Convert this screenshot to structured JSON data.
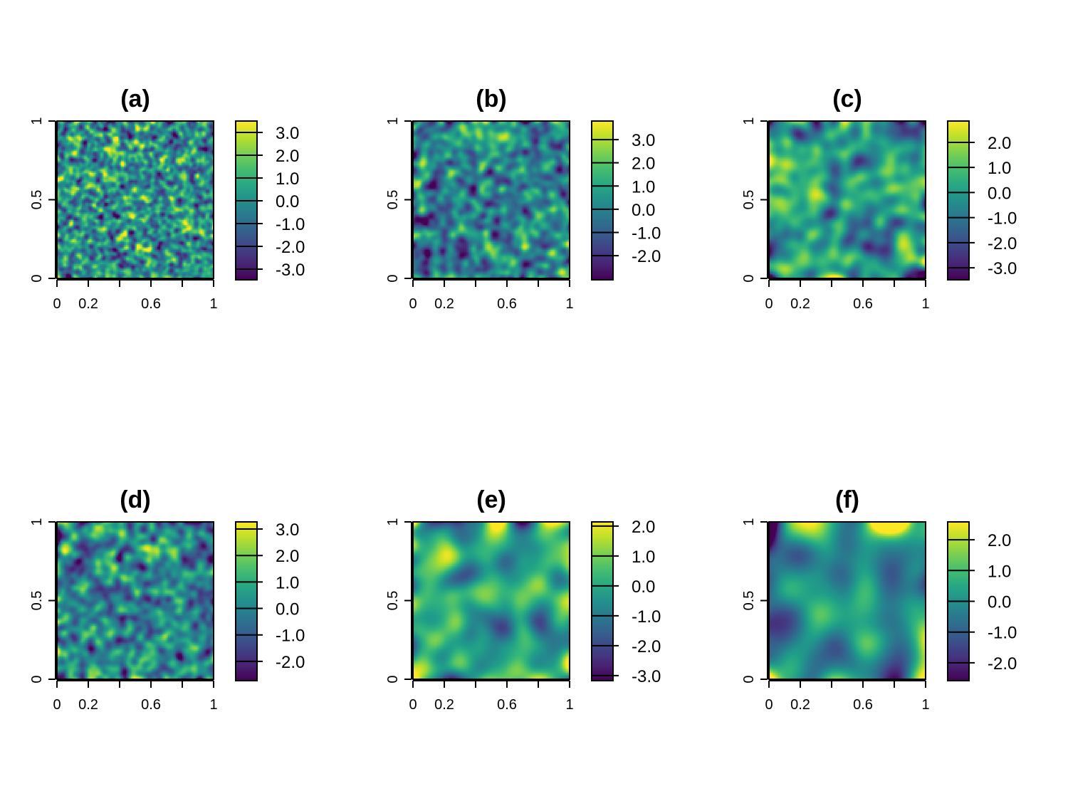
{
  "chart_data": [
    {
      "type": "heatmap",
      "title": "(a)",
      "x_ticks": [
        "0",
        "0.2",
        "0.6",
        "1"
      ],
      "x_tick_values": [
        0,
        0.2,
        0.6,
        1
      ],
      "y_ticks": [
        "0",
        "0.5",
        "1"
      ],
      "y_tick_values": [
        0,
        0.5,
        1
      ],
      "xlim": [
        0,
        1
      ],
      "ylim": [
        0,
        1
      ],
      "colorbar": {
        "range": [
          -3.47,
          3.5
        ],
        "ticks": [
          "3.0",
          "2.0",
          "1.0",
          "0.0",
          "-1.0",
          "-2.0",
          "-3.0"
        ],
        "tick_values": [
          3,
          2,
          1,
          0,
          -1,
          -2,
          -3
        ]
      },
      "colormap": "viridis"
    },
    {
      "type": "heatmap",
      "title": "(b)",
      "x_ticks": [
        "0",
        "0.2",
        "0.6",
        "1"
      ],
      "x_tick_values": [
        0,
        0.2,
        0.6,
        1
      ],
      "y_ticks": [
        "0",
        "0.5",
        "1"
      ],
      "y_tick_values": [
        0,
        0.5,
        1
      ],
      "xlim": [
        0,
        1
      ],
      "ylim": [
        0,
        1
      ],
      "colorbar": {
        "range": [
          -3.04,
          3.8
        ],
        "ticks": [
          "3.0",
          "2.0",
          "1.0",
          "0.0",
          "-1.0",
          "-2.0"
        ],
        "tick_values": [
          3,
          2,
          1,
          0,
          -1,
          -2
        ]
      },
      "colormap": "viridis"
    },
    {
      "type": "heatmap",
      "title": "(c)",
      "x_ticks": [
        "0",
        "0.2",
        "0.6",
        "1"
      ],
      "x_tick_values": [
        0,
        0.2,
        0.6,
        1
      ],
      "y_ticks": [
        "0",
        "0.5",
        "1"
      ],
      "y_tick_values": [
        0,
        0.5,
        1
      ],
      "xlim": [
        0,
        1
      ],
      "ylim": [
        0,
        1
      ],
      "colorbar": {
        "range": [
          -3.48,
          2.85
        ],
        "ticks": [
          "2.0",
          "1.0",
          "0.0",
          "-1.0",
          "-2.0",
          "-3.0"
        ],
        "tick_values": [
          2,
          1,
          0,
          -1,
          -2,
          -3
        ]
      },
      "colormap": "viridis"
    },
    {
      "type": "heatmap",
      "title": "(d)",
      "x_ticks": [
        "0",
        "0.2",
        "0.6",
        "1"
      ],
      "x_tick_values": [
        0,
        0.2,
        0.6,
        1
      ],
      "y_ticks": [
        "0",
        "0.5",
        "1"
      ],
      "y_tick_values": [
        0,
        0.5,
        1
      ],
      "xlim": [
        0,
        1
      ],
      "ylim": [
        0,
        1
      ],
      "colorbar": {
        "range": [
          -2.73,
          3.27
        ],
        "ticks": [
          "3.0",
          "2.0",
          "1.0",
          "0.0",
          "-1.0",
          "-2.0"
        ],
        "tick_values": [
          3,
          2,
          1,
          0,
          -1,
          -2
        ]
      },
      "colormap": "viridis"
    },
    {
      "type": "heatmap",
      "title": "(e)",
      "x_ticks": [
        "0",
        "0.2",
        "0.6",
        "1"
      ],
      "x_tick_values": [
        0,
        0.2,
        0.6,
        1
      ],
      "y_ticks": [
        "0",
        "0.5",
        "1"
      ],
      "y_tick_values": [
        0,
        0.5,
        1
      ],
      "xlim": [
        0,
        1
      ],
      "ylim": [
        0,
        1
      ],
      "colorbar": {
        "range": [
          -3.17,
          2.14
        ],
        "ticks": [
          "2.0",
          "1.0",
          "0.0",
          "-1.0",
          "-2.0",
          "-3.0"
        ],
        "tick_values": [
          2,
          1,
          0,
          -1,
          -2,
          -3
        ]
      },
      "colormap": "viridis"
    },
    {
      "type": "heatmap",
      "title": "(f)",
      "x_ticks": [
        "0",
        "0.2",
        "0.6",
        "1"
      ],
      "x_tick_values": [
        0,
        0.2,
        0.6,
        1
      ],
      "y_ticks": [
        "0",
        "0.5",
        "1"
      ],
      "y_tick_values": [
        0,
        0.5,
        1
      ],
      "xlim": [
        0,
        1
      ],
      "ylim": [
        0,
        1
      ],
      "colorbar": {
        "range": [
          -2.58,
          2.58
        ],
        "ticks": [
          "2.0",
          "1.0",
          "0.0",
          "-1.0",
          "-2.0"
        ],
        "tick_values": [
          2,
          1,
          0,
          -1,
          -2
        ]
      },
      "colormap": "viridis"
    }
  ]
}
